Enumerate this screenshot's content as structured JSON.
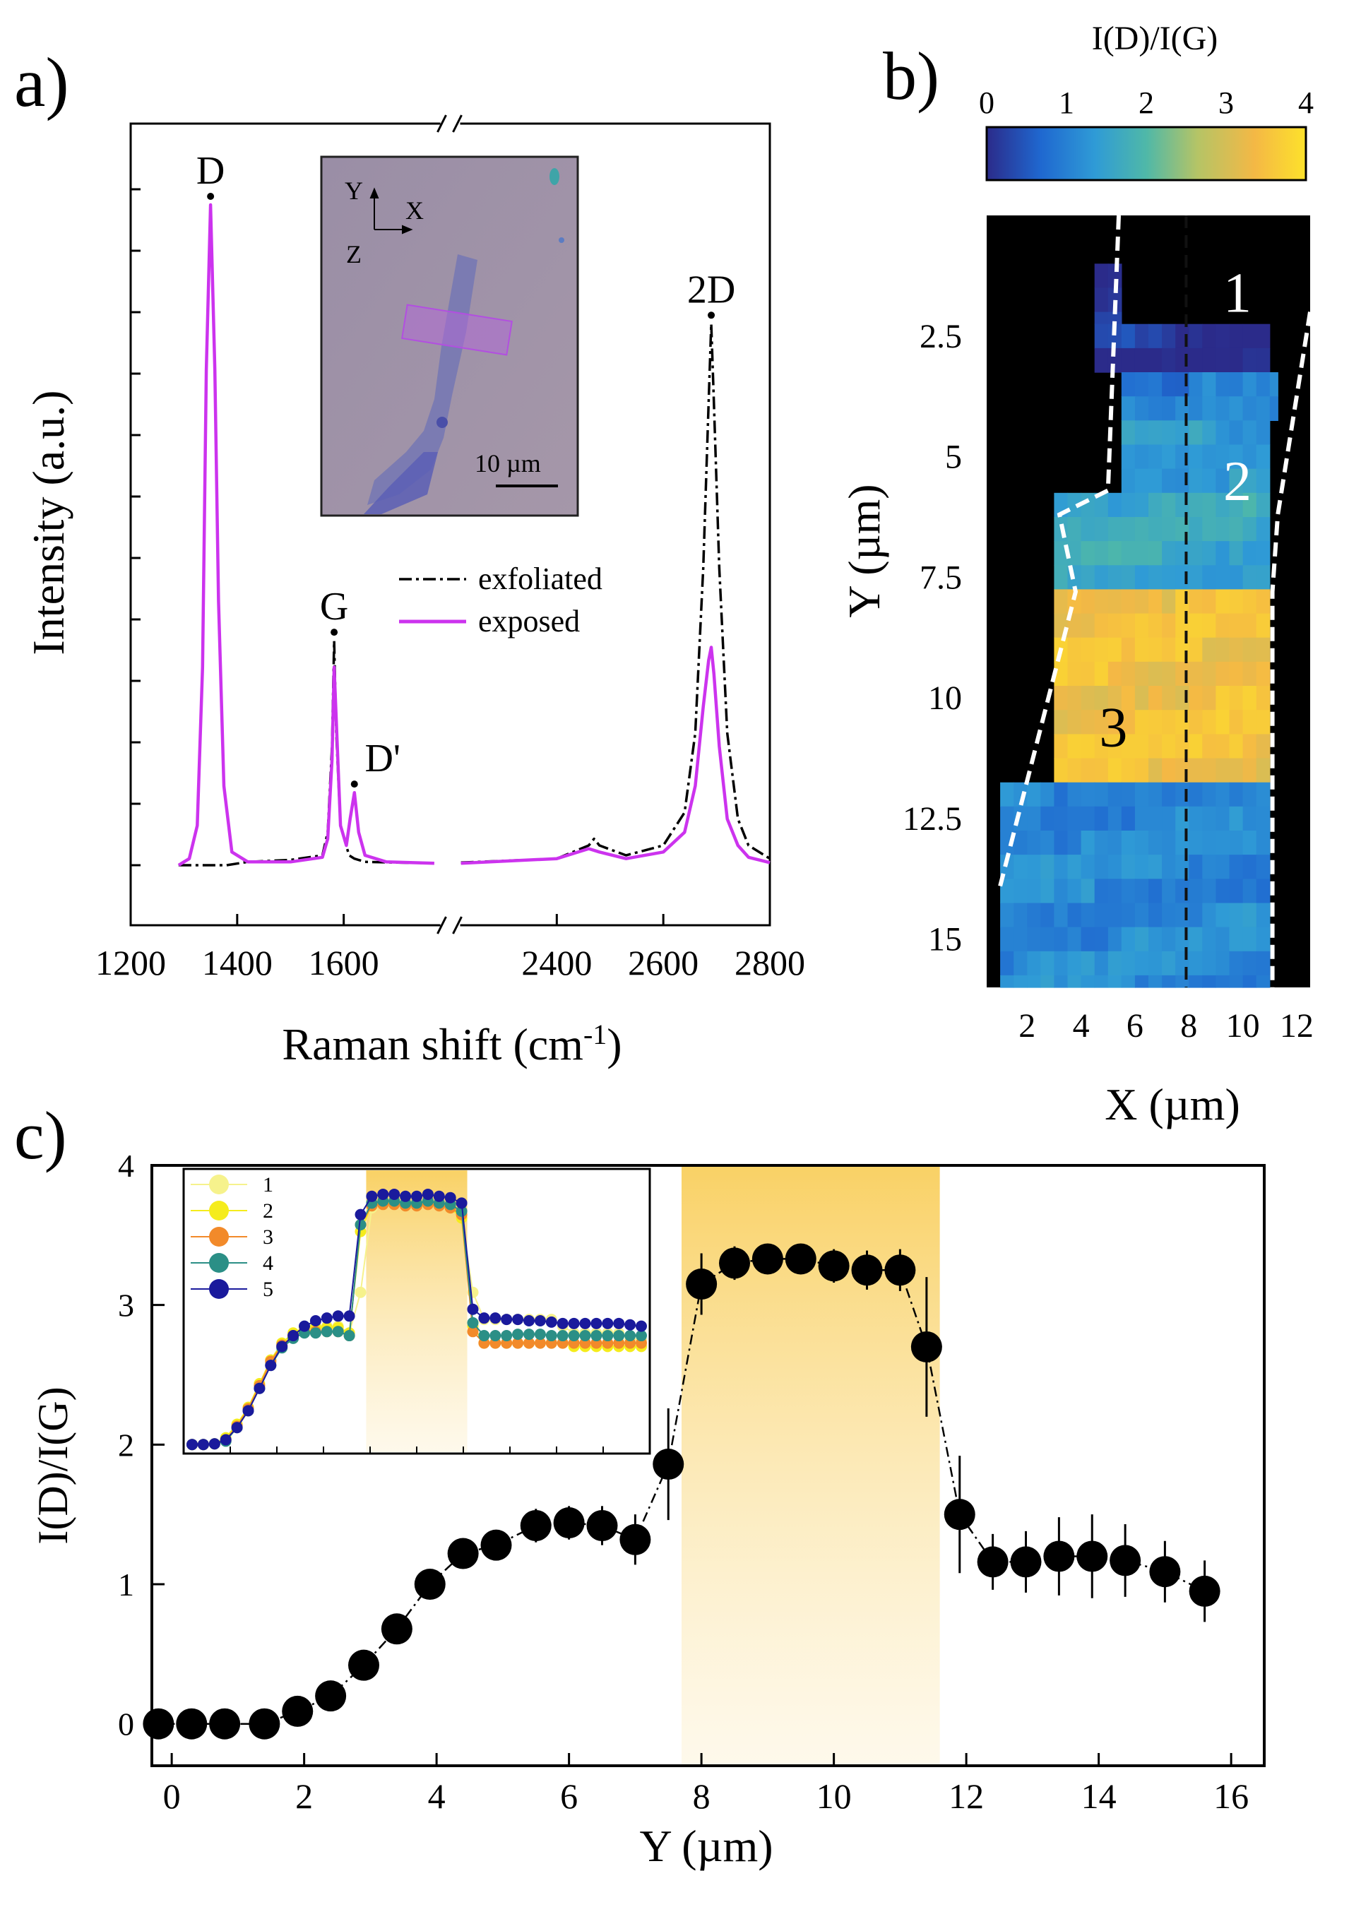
{
  "figure": {
    "panel_labels": [
      "a)",
      "b)",
      "c)"
    ]
  },
  "chart_data": [
    {
      "panel": "a",
      "type": "line",
      "xlabel_main": "Raman shift (cm",
      "xlabel_sup": "-1",
      "xlabel_close": ")",
      "ylabel": "Intensity (a.u.)",
      "xlim_left": [
        1200,
        1800
      ],
      "xlim_right": [
        2200,
        2800
      ],
      "axis_break": "//",
      "xticks": [
        1200,
        1400,
        1600,
        2400,
        2600,
        2800
      ],
      "ylim": [
        0,
        1.1
      ],
      "legend": [
        {
          "label": "exfoliated",
          "style": "dash-dot",
          "color": "#000000"
        },
        {
          "label": "exposed",
          "style": "solid",
          "color": "#cc33ee"
        }
      ],
      "peaks": [
        {
          "label": "D",
          "x": 1350,
          "y": 1.0
        },
        {
          "label": "G",
          "x": 1582,
          "y": 0.34
        },
        {
          "label": "D'",
          "x": 1620,
          "y": 0.11
        },
        {
          "label": "2D",
          "x": 2690,
          "y": 0.82
        }
      ],
      "series": [
        {
          "name": "exfoliated",
          "color": "#000000",
          "x": [
            1290,
            1320,
            1340,
            1350,
            1360,
            1380,
            1420,
            1500,
            1560,
            1570,
            1578,
            1582,
            1586,
            1594,
            1610,
            1620,
            1640,
            1700,
            1770,
            2220,
            2400,
            2460,
            2470,
            2480,
            2530,
            2600,
            2640,
            2660,
            2675,
            2685,
            2690,
            2695,
            2705,
            2720,
            2740,
            2760,
            2800
          ],
          "y": [
            0.0,
            0.0,
            0.0,
            0.0,
            0.0,
            0.0,
            0.005,
            0.008,
            0.015,
            0.05,
            0.18,
            0.34,
            0.2,
            0.06,
            0.015,
            0.01,
            0.005,
            0.004,
            0.003,
            0.004,
            0.01,
            0.03,
            0.04,
            0.03,
            0.015,
            0.03,
            0.08,
            0.2,
            0.45,
            0.7,
            0.82,
            0.7,
            0.45,
            0.2,
            0.07,
            0.03,
            0.01
          ]
        },
        {
          "name": "exposed",
          "color": "#cc33ee",
          "x": [
            1290,
            1310,
            1325,
            1335,
            1342,
            1350,
            1358,
            1365,
            1375,
            1390,
            1420,
            1500,
            1560,
            1570,
            1578,
            1582,
            1586,
            1594,
            1605,
            1612,
            1620,
            1628,
            1640,
            1680,
            1770,
            2220,
            2400,
            2460,
            2480,
            2530,
            2600,
            2640,
            2660,
            2675,
            2685,
            2690,
            2695,
            2705,
            2720,
            2740,
            2760,
            2800
          ],
          "y": [
            0.0,
            0.01,
            0.06,
            0.3,
            0.75,
            1.0,
            0.75,
            0.4,
            0.12,
            0.02,
            0.005,
            0.005,
            0.012,
            0.04,
            0.16,
            0.3,
            0.22,
            0.06,
            0.03,
            0.07,
            0.11,
            0.05,
            0.015,
            0.005,
            0.003,
            0.003,
            0.01,
            0.025,
            0.02,
            0.01,
            0.02,
            0.05,
            0.12,
            0.24,
            0.31,
            0.33,
            0.29,
            0.18,
            0.07,
            0.03,
            0.012,
            0.004
          ]
        }
      ],
      "inset": {
        "type": "optical_micrograph",
        "axes_labels": [
          "Y",
          "X",
          "Z"
        ],
        "scale_bar": "10 µm"
      }
    },
    {
      "panel": "b",
      "type": "heatmap",
      "colorbar_title": "I(D)/I(G)",
      "colorbar_ticks": [
        0,
        1,
        2,
        3,
        4
      ],
      "clim": [
        0,
        4
      ],
      "colormap": [
        "#2b2b8a",
        "#1f68d0",
        "#2f9bd6",
        "#4fb8a8",
        "#b5c466",
        "#f4b845",
        "#fde22b"
      ],
      "xlabel": "X (µm)",
      "ylabel": "Y (µm)",
      "xticks": [
        2,
        4,
        6,
        8,
        10,
        12
      ],
      "yticks": [
        2.5,
        5,
        7.5,
        10,
        12.5,
        15
      ],
      "xlim": [
        0.5,
        12.5
      ],
      "ylim": [
        0,
        16
      ],
      "region_labels": [
        "1",
        "2",
        "3"
      ],
      "bands": [
        {
          "y": [
            1.0,
            2.25
          ],
          "x": [
            4.5,
            5.5
          ],
          "value": 0.1
        },
        {
          "y": [
            2.25,
            3.25
          ],
          "x": [
            4.5,
            11.0
          ],
          "value": 0.15
        },
        {
          "y": [
            3.25,
            4.25
          ],
          "x": [
            5.5,
            11.3
          ],
          "value": 0.9
        },
        {
          "y": [
            4.25,
            5.75
          ],
          "x": [
            5.5,
            11.0
          ],
          "value": 1.4
        },
        {
          "y": [
            5.75,
            7.75
          ],
          "x": [
            3.0,
            11.0
          ],
          "value": 1.6
        },
        {
          "y": [
            7.75,
            11.75
          ],
          "x": [
            3.0,
            11.0
          ],
          "value": 3.4
        },
        {
          "y": [
            11.75,
            16.0
          ],
          "x": [
            1.0,
            11.0
          ],
          "value": 1.1
        }
      ]
    },
    {
      "panel": "c",
      "type": "scatter",
      "xlabel": "Y (µm)",
      "ylabel": "I(D)/I(G)",
      "xlim": [
        -0.3,
        16.5
      ],
      "ylim": [
        -0.3,
        4.0
      ],
      "xticks": [
        0,
        2,
        4,
        6,
        8,
        10,
        12,
        14,
        16
      ],
      "yticks": [
        0,
        1,
        2,
        3,
        4
      ],
      "highlight_band": [
        7.7,
        11.6
      ],
      "series": [
        {
          "name": "profile",
          "x": [
            -0.2,
            0.3,
            0.8,
            1.4,
            1.9,
            2.4,
            2.9,
            3.4,
            3.9,
            4.4,
            4.9,
            5.5,
            6.0,
            6.5,
            7.0,
            7.5,
            8.0,
            8.5,
            9.0,
            9.5,
            10.0,
            10.5,
            11.0,
            11.4,
            11.9,
            12.4,
            12.9,
            13.4,
            13.9,
            14.4,
            15.0,
            15.6
          ],
          "y": [
            0.0,
            0.0,
            0.0,
            0.0,
            0.09,
            0.2,
            0.42,
            0.68,
            1.0,
            1.22,
            1.28,
            1.42,
            1.44,
            1.42,
            1.32,
            1.86,
            3.15,
            3.3,
            3.33,
            3.33,
            3.28,
            3.25,
            3.25,
            2.7,
            1.5,
            1.16,
            1.16,
            1.2,
            1.2,
            1.17,
            1.09,
            0.95
          ],
          "err": [
            0.02,
            0.02,
            0.02,
            0.02,
            0.04,
            0.05,
            0.05,
            0.06,
            0.08,
            0.1,
            0.1,
            0.12,
            0.12,
            0.14,
            0.18,
            0.4,
            0.22,
            0.12,
            0.1,
            0.1,
            0.12,
            0.14,
            0.15,
            0.5,
            0.42,
            0.2,
            0.22,
            0.28,
            0.3,
            0.26,
            0.22,
            0.22
          ]
        }
      ],
      "inset": {
        "x": [
          0,
          1,
          2,
          3,
          4,
          5,
          6,
          7,
          8,
          9,
          10,
          11,
          12,
          13,
          14,
          15,
          16,
          17,
          18,
          19,
          20,
          21,
          22,
          23,
          24,
          25,
          26,
          27,
          28,
          29,
          30,
          31,
          32,
          33,
          34,
          35,
          36,
          37,
          38,
          39,
          40
        ],
        "ylim": [
          0,
          4
        ],
        "highlight_band": [
          15.5,
          24.5
        ],
        "legend": [
          "1",
          "2",
          "3",
          "4",
          "5"
        ],
        "series": [
          {
            "name": "1",
            "color": "#f6f28c",
            "y": [
              0.05,
              0.05,
              0.06,
              0.1,
              0.3,
              0.55,
              0.9,
              1.25,
              1.5,
              1.65,
              1.75,
              1.8,
              1.8,
              1.8,
              1.7,
              2.3,
              3.55,
              3.62,
              3.62,
              3.6,
              3.6,
              3.62,
              3.6,
              3.55,
              3.4,
              2.3,
              1.9,
              1.9,
              1.9,
              1.9,
              1.9,
              1.9,
              1.9,
              1.8,
              1.7,
              1.7,
              1.7,
              1.7,
              1.7,
              1.6,
              1.6
            ]
          },
          {
            "name": "2",
            "color": "#f5ec1c",
            "y": [
              0.05,
              0.05,
              0.06,
              0.15,
              0.35,
              0.6,
              0.95,
              1.3,
              1.55,
              1.7,
              1.78,
              1.78,
              1.78,
              1.78,
              1.7,
              3.2,
              3.6,
              3.63,
              3.62,
              3.6,
              3.6,
              3.62,
              3.6,
              3.55,
              3.4,
              1.8,
              1.55,
              1.55,
              1.55,
              1.55,
              1.55,
              1.55,
              1.55,
              1.55,
              1.5,
              1.5,
              1.5,
              1.5,
              1.5,
              1.5,
              1.5
            ]
          },
          {
            "name": "3",
            "color": "#f28a2a",
            "y": [
              0.05,
              0.05,
              0.06,
              0.12,
              0.32,
              0.58,
              0.92,
              1.28,
              1.52,
              1.66,
              1.72,
              1.72,
              1.72,
              1.72,
              1.66,
              3.3,
              3.58,
              3.6,
              3.6,
              3.58,
              3.58,
              3.6,
              3.58,
              3.55,
              3.45,
              1.72,
              1.55,
              1.55,
              1.55,
              1.55,
              1.55,
              1.55,
              1.55,
              1.55,
              1.55,
              1.55,
              1.55,
              1.55,
              1.55,
              1.55,
              1.55
            ]
          },
          {
            "name": "4",
            "color": "#2b8f86",
            "y": [
              0.05,
              0.05,
              0.06,
              0.1,
              0.3,
              0.55,
              0.88,
              1.22,
              1.48,
              1.62,
              1.7,
              1.7,
              1.72,
              1.72,
              1.66,
              3.3,
              3.62,
              3.65,
              3.65,
              3.62,
              3.62,
              3.65,
              3.62,
              3.6,
              3.5,
              1.85,
              1.66,
              1.66,
              1.66,
              1.68,
              1.68,
              1.68,
              1.66,
              1.66,
              1.66,
              1.66,
              1.66,
              1.66,
              1.66,
              1.66,
              1.66
            ]
          },
          {
            "name": "5",
            "color": "#1a1a9c",
            "y": [
              0.05,
              0.05,
              0.06,
              0.12,
              0.3,
              0.55,
              0.88,
              1.22,
              1.5,
              1.66,
              1.8,
              1.88,
              1.92,
              1.95,
              1.95,
              3.45,
              3.72,
              3.75,
              3.75,
              3.72,
              3.72,
              3.75,
              3.72,
              3.7,
              3.62,
              2.05,
              1.92,
              1.92,
              1.9,
              1.9,
              1.88,
              1.88,
              1.86,
              1.84,
              1.84,
              1.84,
              1.84,
              1.84,
              1.84,
              1.82,
              1.8
            ]
          }
        ]
      }
    }
  ]
}
